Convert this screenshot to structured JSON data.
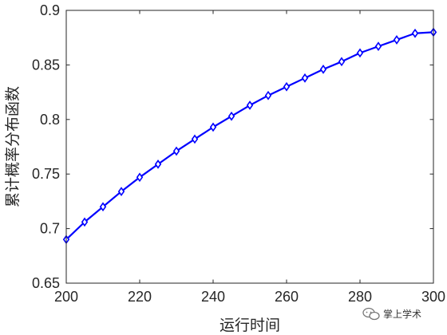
{
  "chart_data": {
    "type": "line",
    "title": "",
    "xlabel": "运行时间",
    "ylabel": "累计概率分布函数",
    "xlim": [
      200,
      300
    ],
    "ylim": [
      0.65,
      0.9
    ],
    "xticks": [
      "200",
      "220",
      "240",
      "260",
      "280",
      "300"
    ],
    "yticks": [
      "0.65",
      "0.7",
      "0.75",
      "0.8",
      "0.85",
      "0.9"
    ],
    "grid": false,
    "legend": "none",
    "series": [
      {
        "color": "#0000ff",
        "marker": "diamond",
        "x": [
          200,
          205,
          210,
          215,
          220,
          225,
          230,
          235,
          240,
          245,
          250,
          255,
          260,
          265,
          270,
          275,
          280,
          285,
          290,
          295,
          300
        ],
        "y": [
          0.69,
          0.706,
          0.72,
          0.734,
          0.747,
          0.759,
          0.771,
          0.782,
          0.793,
          0.803,
          0.813,
          0.822,
          0.83,
          0.838,
          0.846,
          0.853,
          0.861,
          0.867,
          0.873,
          0.879,
          0.88
        ]
      }
    ]
  },
  "watermark": {
    "text": "掌上学术",
    "icon": "wechat-icon"
  }
}
